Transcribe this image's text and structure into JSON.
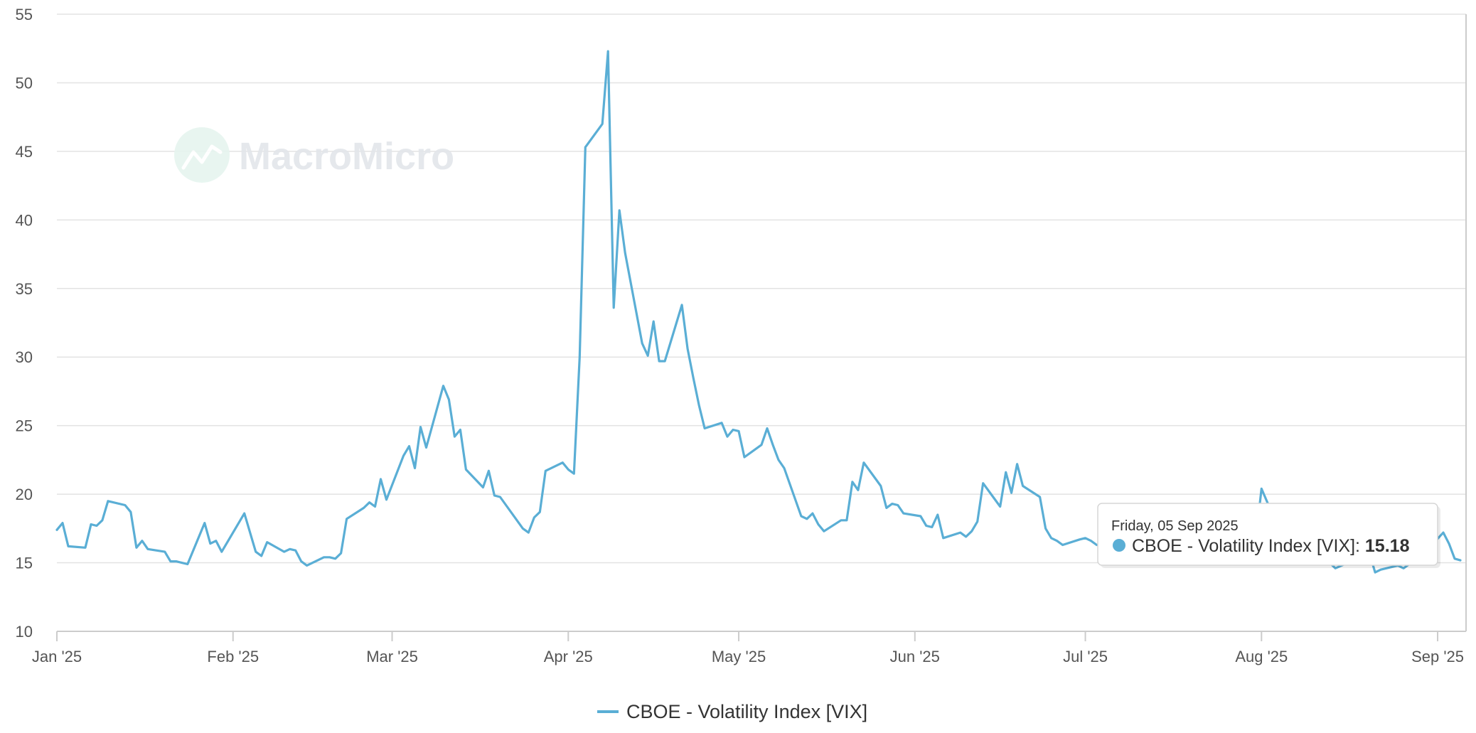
{
  "watermark": {
    "text": "MacroMicro"
  },
  "colors": {
    "series": "#5aaed5",
    "grid": "#e3e3e3",
    "axis": "#cccccc",
    "tooltip_border": "#d6d6d6",
    "tooltip_bg": "#ffffff"
  },
  "tooltip": {
    "date": "Friday, 05 Sep 2025",
    "series_label": "CBOE - Volatility Index [VIX]: ",
    "value": "15.18"
  },
  "legend": {
    "label": "CBOE - Volatility Index [VIX]"
  },
  "chart_data": {
    "type": "line",
    "title": "",
    "xlabel": "",
    "ylabel": "",
    "ylim": [
      10,
      55
    ],
    "yticks": [
      10,
      15,
      20,
      25,
      30,
      35,
      40,
      45,
      50,
      55
    ],
    "xlim": [
      "2025-01-01",
      "2025-09-06"
    ],
    "xticks": [
      {
        "date": "2025-01-01",
        "label": "Jan '25"
      },
      {
        "date": "2025-02-01",
        "label": "Feb '25"
      },
      {
        "date": "2025-03-01",
        "label": "Mar '25"
      },
      {
        "date": "2025-04-01",
        "label": "Apr '25"
      },
      {
        "date": "2025-05-01",
        "label": "May '25"
      },
      {
        "date": "2025-06-01",
        "label": "Jun '25"
      },
      {
        "date": "2025-07-01",
        "label": "Jul '25"
      },
      {
        "date": "2025-08-01",
        "label": "Aug '25"
      },
      {
        "date": "2025-09-01",
        "label": "Sep '25"
      }
    ],
    "grid": true,
    "legend_position": "bottom-center",
    "series": [
      {
        "name": "CBOE - Volatility Index [VIX]",
        "color": "#5aaed5",
        "points": [
          [
            "2025-01-01",
            17.4
          ],
          [
            "2025-01-02",
            17.9
          ],
          [
            "2025-01-03",
            16.2
          ],
          [
            "2025-01-06",
            16.1
          ],
          [
            "2025-01-07",
            17.8
          ],
          [
            "2025-01-08",
            17.7
          ],
          [
            "2025-01-09",
            18.1
          ],
          [
            "2025-01-10",
            19.5
          ],
          [
            "2025-01-13",
            19.2
          ],
          [
            "2025-01-14",
            18.7
          ],
          [
            "2025-01-15",
            16.1
          ],
          [
            "2025-01-16",
            16.6
          ],
          [
            "2025-01-17",
            16.0
          ],
          [
            "2025-01-20",
            15.8
          ],
          [
            "2025-01-21",
            15.1
          ],
          [
            "2025-01-22",
            15.1
          ],
          [
            "2025-01-23",
            15.0
          ],
          [
            "2025-01-24",
            14.9
          ],
          [
            "2025-01-27",
            17.9
          ],
          [
            "2025-01-28",
            16.4
          ],
          [
            "2025-01-29",
            16.6
          ],
          [
            "2025-01-30",
            15.8
          ],
          [
            "2025-02-03",
            18.6
          ],
          [
            "2025-02-04",
            17.2
          ],
          [
            "2025-02-05",
            15.8
          ],
          [
            "2025-02-06",
            15.5
          ],
          [
            "2025-02-07",
            16.5
          ],
          [
            "2025-02-10",
            15.8
          ],
          [
            "2025-02-11",
            16.0
          ],
          [
            "2025-02-12",
            15.9
          ],
          [
            "2025-02-13",
            15.1
          ],
          [
            "2025-02-14",
            14.8
          ],
          [
            "2025-02-17",
            15.4
          ],
          [
            "2025-02-18",
            15.4
          ],
          [
            "2025-02-19",
            15.3
          ],
          [
            "2025-02-20",
            15.7
          ],
          [
            "2025-02-21",
            18.2
          ],
          [
            "2025-02-24",
            19.0
          ],
          [
            "2025-02-25",
            19.4
          ],
          [
            "2025-02-26",
            19.1
          ],
          [
            "2025-02-27",
            21.1
          ],
          [
            "2025-02-28",
            19.6
          ],
          [
            "2025-03-03",
            22.8
          ],
          [
            "2025-03-04",
            23.5
          ],
          [
            "2025-03-05",
            21.9
          ],
          [
            "2025-03-06",
            24.9
          ],
          [
            "2025-03-07",
            23.4
          ],
          [
            "2025-03-10",
            27.9
          ],
          [
            "2025-03-11",
            26.9
          ],
          [
            "2025-03-12",
            24.2
          ],
          [
            "2025-03-13",
            24.7
          ],
          [
            "2025-03-14",
            21.8
          ],
          [
            "2025-03-17",
            20.5
          ],
          [
            "2025-03-18",
            21.7
          ],
          [
            "2025-03-19",
            19.9
          ],
          [
            "2025-03-20",
            19.8
          ],
          [
            "2025-03-24",
            17.5
          ],
          [
            "2025-03-25",
            17.2
          ],
          [
            "2025-03-26",
            18.3
          ],
          [
            "2025-03-27",
            18.7
          ],
          [
            "2025-03-28",
            21.7
          ],
          [
            "2025-03-31",
            22.3
          ],
          [
            "2025-04-01",
            21.8
          ],
          [
            "2025-04-02",
            21.5
          ],
          [
            "2025-04-03",
            30.0
          ],
          [
            "2025-04-04",
            45.3
          ],
          [
            "2025-04-07",
            47.0
          ],
          [
            "2025-04-08",
            52.3
          ],
          [
            "2025-04-09",
            33.6
          ],
          [
            "2025-04-10",
            40.7
          ],
          [
            "2025-04-11",
            37.6
          ],
          [
            "2025-04-14",
            31.0
          ],
          [
            "2025-04-15",
            30.1
          ],
          [
            "2025-04-16",
            32.6
          ],
          [
            "2025-04-17",
            29.7
          ],
          [
            "2025-04-18",
            29.7
          ],
          [
            "2025-04-21",
            33.8
          ],
          [
            "2025-04-22",
            30.6
          ],
          [
            "2025-04-23",
            28.5
          ],
          [
            "2025-04-24",
            26.5
          ],
          [
            "2025-04-25",
            24.8
          ],
          [
            "2025-04-28",
            25.2
          ],
          [
            "2025-04-29",
            24.2
          ],
          [
            "2025-04-30",
            24.7
          ],
          [
            "2025-05-01",
            24.6
          ],
          [
            "2025-05-02",
            22.7
          ],
          [
            "2025-05-05",
            23.6
          ],
          [
            "2025-05-06",
            24.8
          ],
          [
            "2025-05-07",
            23.6
          ],
          [
            "2025-05-08",
            22.5
          ],
          [
            "2025-05-09",
            21.9
          ],
          [
            "2025-05-12",
            18.4
          ],
          [
            "2025-05-13",
            18.2
          ],
          [
            "2025-05-14",
            18.6
          ],
          [
            "2025-05-15",
            17.8
          ],
          [
            "2025-05-16",
            17.3
          ],
          [
            "2025-05-19",
            18.1
          ],
          [
            "2025-05-20",
            18.1
          ],
          [
            "2025-05-21",
            20.9
          ],
          [
            "2025-05-22",
            20.3
          ],
          [
            "2025-05-23",
            22.3
          ],
          [
            "2025-05-26",
            20.6
          ],
          [
            "2025-05-27",
            19.0
          ],
          [
            "2025-05-28",
            19.3
          ],
          [
            "2025-05-29",
            19.2
          ],
          [
            "2025-05-30",
            18.6
          ],
          [
            "2025-06-02",
            18.4
          ],
          [
            "2025-06-03",
            17.7
          ],
          [
            "2025-06-04",
            17.6
          ],
          [
            "2025-06-05",
            18.5
          ],
          [
            "2025-06-06",
            16.8
          ],
          [
            "2025-06-09",
            17.2
          ],
          [
            "2025-06-10",
            16.9
          ],
          [
            "2025-06-11",
            17.3
          ],
          [
            "2025-06-12",
            18.0
          ],
          [
            "2025-06-13",
            20.8
          ],
          [
            "2025-06-16",
            19.1
          ],
          [
            "2025-06-17",
            21.6
          ],
          [
            "2025-06-18",
            20.1
          ],
          [
            "2025-06-19",
            22.2
          ],
          [
            "2025-06-20",
            20.6
          ],
          [
            "2025-06-23",
            19.8
          ],
          [
            "2025-06-24",
            17.5
          ],
          [
            "2025-06-25",
            16.8
          ],
          [
            "2025-06-26",
            16.6
          ],
          [
            "2025-06-27",
            16.3
          ],
          [
            "2025-06-30",
            16.7
          ],
          [
            "2025-07-01",
            16.8
          ],
          [
            "2025-07-02",
            16.6
          ],
          [
            "2025-07-03",
            16.3
          ],
          [
            "2025-07-31",
            16.7
          ],
          [
            "2025-08-01",
            20.4
          ],
          [
            "2025-08-04",
            17.5
          ],
          [
            "2025-08-11",
            15.8
          ],
          [
            "2025-08-14",
            14.6
          ],
          [
            "2025-08-20",
            15.7
          ],
          [
            "2025-08-21",
            14.3
          ],
          [
            "2025-08-22",
            14.5
          ],
          [
            "2025-08-25",
            14.8
          ],
          [
            "2025-08-26",
            14.6
          ],
          [
            "2025-08-27",
            14.9
          ],
          [
            "2025-08-28",
            15.0
          ],
          [
            "2025-08-29",
            15.4
          ],
          [
            "2025-09-02",
            17.2
          ],
          [
            "2025-09-03",
            16.4
          ],
          [
            "2025-09-04",
            15.3
          ],
          [
            "2025-09-05",
            15.18
          ]
        ]
      }
    ]
  }
}
